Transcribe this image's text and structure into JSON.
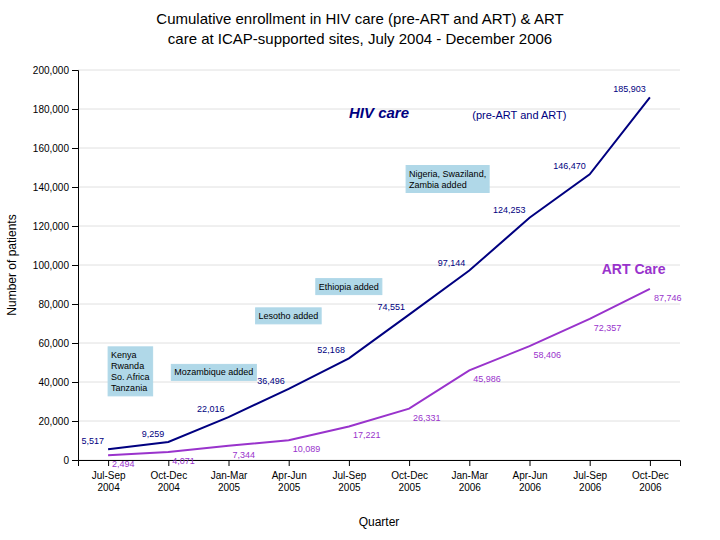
{
  "chart_data": {
    "type": "line",
    "title": "Cumulative enrollment in HIV care (pre-ART and ART) & ART\ncare at ICAP-supported sites, July 2004 - December 2006",
    "x_label": "Quarter",
    "y_label": "Number of patients",
    "categories": [
      "Jul-Sep\n2004",
      "Oct-Dec\n2004",
      "Jan-Mar\n2005",
      "Apr-Jun\n2005",
      "Jul-Sep\n2005",
      "Oct-Dec\n2005",
      "Jan-Mar\n2006",
      "Apr-Jun\n2006",
      "Jul-Sep\n2006",
      "Oct-Dec\n2006"
    ],
    "series": [
      {
        "name": "HIV care",
        "color": "#000080",
        "values": [
          5517,
          9259,
          22016,
          36496,
          52168,
          74551,
          97144,
          124253,
          146470,
          185903
        ],
        "value_labels": [
          "5,517",
          "9,259",
          "22,016",
          "36,496",
          "52,168",
          "74,551",
          "97,144",
          "124,253",
          "146,470",
          "185,903"
        ]
      },
      {
        "name": "ART Care",
        "color": "#9933CC",
        "values": [
          2494,
          4071,
          7344,
          10089,
          17221,
          26331,
          45986,
          58406,
          72357,
          87746
        ],
        "value_labels": [
          "2,494",
          "4,071",
          "7,344",
          "10,089",
          "17,221",
          "26,331",
          "45,986",
          "58,406",
          "72,357",
          "87,746"
        ]
      }
    ],
    "ylim": [
      0,
      200000
    ],
    "yticks": [
      0,
      {
        "value": 20000,
        "label": "20,000"
      },
      {
        "value": 40000,
        "label": "40,000"
      },
      {
        "value": 60000,
        "label": "60,000"
      },
      {
        "value": 80000,
        "label": "80,000"
      },
      {
        "value": 100000,
        "label": "100,000"
      },
      {
        "value": 120000,
        "label": "120,000"
      },
      {
        "value": 140000,
        "label": "140,000"
      },
      {
        "value": 160000,
        "label": "160,000"
      },
      {
        "value": 180000,
        "label": "180,000"
      },
      {
        "value": 200000,
        "label": "200,000"
      }
    ],
    "grid": true,
    "data_labels": true,
    "annotations": [
      {
        "text": "Kenya\nRwanda\nSo. Africa\nTanzania",
        "color": "#b0d8e8"
      },
      {
        "text": "Mozambique added",
        "color": "#b0d8e8"
      },
      {
        "text": "Lesotho added",
        "color": "#b0d8e8"
      },
      {
        "text": "Ethiopia added",
        "color": "#b0d8e8"
      },
      {
        "text": "Nigeria, Swaziland,\nZambia added",
        "color": "#b0d8e8"
      },
      {
        "text": "(pre-ART and ART)",
        "color": "#000080"
      }
    ]
  }
}
